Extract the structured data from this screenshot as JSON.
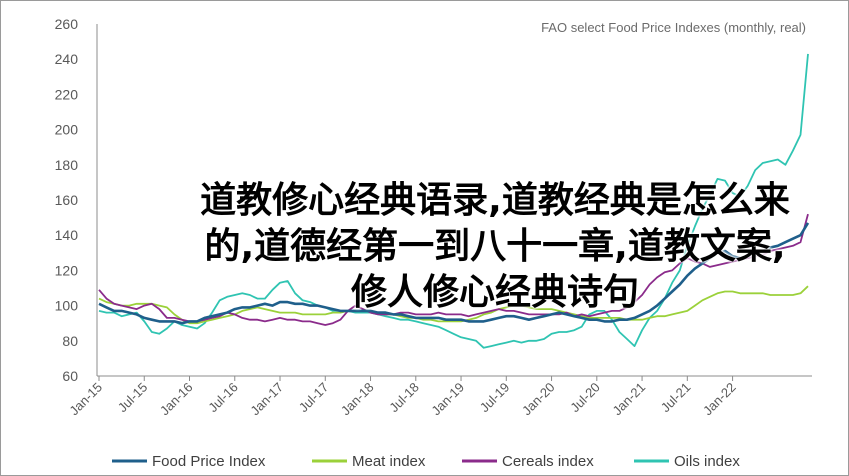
{
  "chart_data": {
    "type": "line",
    "title": "FAO select Food Price Indexes (monthly, real)",
    "xlabel": "",
    "ylabel": "",
    "ylim": [
      60,
      260
    ],
    "yticks": [
      60,
      80,
      100,
      120,
      140,
      160,
      180,
      200,
      220,
      240,
      260
    ],
    "xticks": [
      "Jan-15",
      "Jul-15",
      "Jan-16",
      "Jul-16",
      "Jan-17",
      "Jul-17",
      "Jan-18",
      "Jul-18",
      "Jan-19",
      "Jul-19",
      "Jan-20",
      "Jul-20",
      "Jan-21",
      "Jul-21",
      "Jan-22"
    ],
    "x_start": "2015-01",
    "x_end": "2022-03",
    "grid": false,
    "legend_position": "bottom",
    "series": [
      {
        "name": "Food Price Index",
        "color": "#1f5f8b",
        "values": [
          101,
          99,
          97,
          97,
          96,
          95,
          93,
          92,
          91,
          91,
          91,
          90,
          91,
          91,
          93,
          94,
          95,
          96,
          98,
          99,
          99,
          100,
          101,
          100,
          102,
          102,
          101,
          101,
          100,
          100,
          99,
          98,
          97,
          97,
          97,
          97,
          97,
          96,
          96,
          95,
          95,
          94,
          93,
          93,
          93,
          93,
          92,
          92,
          92,
          91,
          91,
          91,
          92,
          93,
          94,
          94,
          93,
          92,
          93,
          94,
          95,
          96,
          95,
          94,
          93,
          92,
          92,
          91,
          91,
          92,
          92,
          93,
          95,
          97,
          100,
          104,
          108,
          112,
          117,
          121,
          124,
          127,
          130,
          131,
          128,
          127,
          128,
          130,
          131,
          133,
          134,
          136,
          138,
          140,
          147
        ]
      },
      {
        "name": "Meat index",
        "color": "#9bd13a",
        "values": [
          104,
          102,
          101,
          100,
          100,
          101,
          101,
          101,
          100,
          99,
          95,
          92,
          90,
          90,
          91,
          92,
          93,
          94,
          95,
          97,
          98,
          99,
          98,
          97,
          96,
          96,
          96,
          95,
          95,
          95,
          95,
          96,
          96,
          97,
          97,
          97,
          97,
          96,
          95,
          95,
          94,
          93,
          93,
          92,
          92,
          91,
          91,
          91,
          91,
          92,
          93,
          95,
          96,
          98,
          99,
          100,
          100,
          99,
          98,
          98,
          98,
          97,
          96,
          95,
          94,
          93,
          93,
          93,
          93,
          93,
          92,
          92,
          92,
          93,
          94,
          94,
          95,
          96,
          97,
          100,
          103,
          105,
          107,
          108,
          108,
          107,
          107,
          107,
          107,
          106,
          106,
          106,
          106,
          107,
          111
        ]
      },
      {
        "name": "Cereals index",
        "color": "#8b2b8b",
        "values": [
          109,
          104,
          101,
          100,
          99,
          98,
          100,
          101,
          98,
          93,
          93,
          92,
          91,
          91,
          92,
          93,
          94,
          96,
          95,
          93,
          92,
          92,
          91,
          92,
          93,
          92,
          92,
          91,
          91,
          90,
          89,
          90,
          92,
          97,
          100,
          98,
          96,
          95,
          95,
          95,
          96,
          96,
          95,
          95,
          95,
          96,
          95,
          95,
          95,
          94,
          95,
          96,
          97,
          98,
          97,
          97,
          96,
          95,
          95,
          95,
          95,
          95,
          96,
          94,
          95,
          94,
          95,
          96,
          97,
          97,
          99,
          102,
          106,
          112,
          116,
          119,
          120,
          124,
          127,
          125,
          124,
          122,
          123,
          124,
          125,
          126,
          127,
          128,
          129,
          131,
          132,
          133,
          134,
          136,
          152
        ]
      },
      {
        "name": "Oils index",
        "color": "#2fc4b2",
        "values": [
          97,
          96,
          96,
          94,
          95,
          96,
          91,
          85,
          84,
          87,
          91,
          89,
          88,
          87,
          90,
          96,
          103,
          105,
          106,
          107,
          106,
          104,
          104,
          109,
          113,
          114,
          107,
          103,
          102,
          100,
          99,
          97,
          97,
          97,
          96,
          96,
          96,
          95,
          94,
          93,
          92,
          92,
          91,
          90,
          89,
          88,
          86,
          84,
          82,
          81,
          80,
          76,
          77,
          78,
          79,
          80,
          79,
          80,
          80,
          81,
          84,
          85,
          85,
          86,
          88,
          95,
          97,
          97,
          92,
          85,
          81,
          77,
          86,
          93,
          97,
          104,
          113,
          120,
          134,
          145,
          155,
          163,
          172,
          171,
          164,
          162,
          168,
          177,
          181,
          182,
          183,
          180,
          188,
          197,
          243
        ]
      }
    ]
  },
  "overlay_title": "道教修心经典语录,道教经典是怎么来的,道德经第一到八十一章,道教文案,修人修心经典诗句"
}
